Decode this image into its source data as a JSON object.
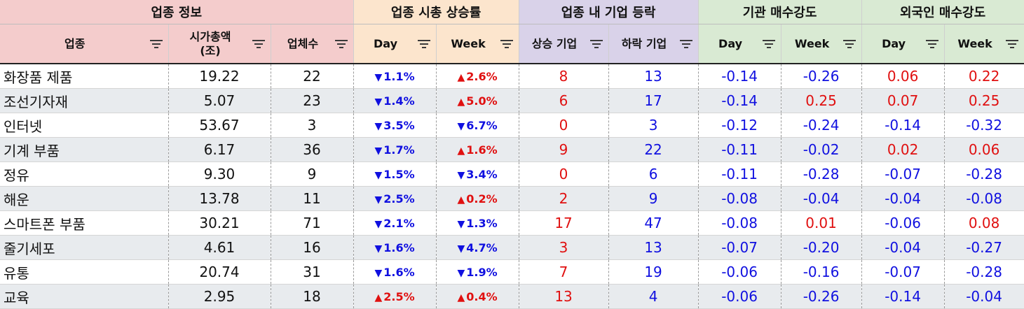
{
  "groups": [
    {
      "label": "업종 정보"
    },
    {
      "label": "업종 시총 상승률"
    },
    {
      "label": "업종 내 기업 등락"
    },
    {
      "label": "기관 매수강도"
    },
    {
      "label": "외국인 매수강도"
    }
  ],
  "columns": [
    {
      "label": "업종"
    },
    {
      "label": "시가총액\n(조)"
    },
    {
      "label": "업체수"
    },
    {
      "label": "Day"
    },
    {
      "label": "Week"
    },
    {
      "label": "상승 기업"
    },
    {
      "label": "하락 기업"
    },
    {
      "label": "Day"
    },
    {
      "label": "Week"
    },
    {
      "label": "Day"
    },
    {
      "label": "Week"
    }
  ],
  "icons": {
    "filter": "filter-icon",
    "up": "triangle-up-icon",
    "down": "triangle-down-icon"
  },
  "colors": {
    "up": "#e01010",
    "down": "#1010e0"
  },
  "rows": [
    {
      "name": "화장품 제품",
      "cap": "19.22",
      "count": "22",
      "day": {
        "dir": "down",
        "arrow": "▼",
        "val": "1.1%"
      },
      "week": {
        "dir": "up",
        "arrow": "▲",
        "val": "2.6%"
      },
      "rise": "8",
      "fall": "13",
      "inst_day": "-0.14",
      "inst_week": "-0.26",
      "for_day": "0.06",
      "for_week": "0.22"
    },
    {
      "name": "조선기자재",
      "cap": "5.07",
      "count": "23",
      "day": {
        "dir": "down",
        "arrow": "▼",
        "val": "1.4%"
      },
      "week": {
        "dir": "up",
        "arrow": "▲",
        "val": "5.0%"
      },
      "rise": "6",
      "fall": "17",
      "inst_day": "-0.14",
      "inst_week": "0.25",
      "for_day": "0.07",
      "for_week": "0.25"
    },
    {
      "name": "인터넷",
      "cap": "53.67",
      "count": "3",
      "day": {
        "dir": "down",
        "arrow": "▼",
        "val": "3.5%"
      },
      "week": {
        "dir": "down",
        "arrow": "▼",
        "val": "6.7%"
      },
      "rise": "0",
      "fall": "3",
      "inst_day": "-0.12",
      "inst_week": "-0.24",
      "for_day": "-0.14",
      "for_week": "-0.32"
    },
    {
      "name": "기계 부품",
      "cap": "6.17",
      "count": "36",
      "day": {
        "dir": "down",
        "arrow": "▼",
        "val": "1.7%"
      },
      "week": {
        "dir": "up",
        "arrow": "▲",
        "val": "1.6%"
      },
      "rise": "9",
      "fall": "22",
      "inst_day": "-0.11",
      "inst_week": "-0.02",
      "for_day": "0.02",
      "for_week": "0.06"
    },
    {
      "name": "정유",
      "cap": "9.30",
      "count": "9",
      "day": {
        "dir": "down",
        "arrow": "▼",
        "val": "1.5%"
      },
      "week": {
        "dir": "down",
        "arrow": "▼",
        "val": "3.4%"
      },
      "rise": "0",
      "fall": "6",
      "inst_day": "-0.11",
      "inst_week": "-0.28",
      "for_day": "-0.07",
      "for_week": "-0.28"
    },
    {
      "name": "해운",
      "cap": "13.78",
      "count": "11",
      "day": {
        "dir": "down",
        "arrow": "▼",
        "val": "2.5%"
      },
      "week": {
        "dir": "up",
        "arrow": "▲",
        "val": "0.2%"
      },
      "rise": "2",
      "fall": "9",
      "inst_day": "-0.08",
      "inst_week": "-0.04",
      "for_day": "-0.04",
      "for_week": "-0.08"
    },
    {
      "name": "스마트폰 부품",
      "cap": "30.21",
      "count": "71",
      "day": {
        "dir": "down",
        "arrow": "▼",
        "val": "2.1%"
      },
      "week": {
        "dir": "down",
        "arrow": "▼",
        "val": "1.3%"
      },
      "rise": "17",
      "fall": "47",
      "inst_day": "-0.08",
      "inst_week": "0.01",
      "for_day": "-0.06",
      "for_week": "0.08"
    },
    {
      "name": "줄기세포",
      "cap": "4.61",
      "count": "16",
      "day": {
        "dir": "down",
        "arrow": "▼",
        "val": "1.6%"
      },
      "week": {
        "dir": "down",
        "arrow": "▼",
        "val": "4.7%"
      },
      "rise": "3",
      "fall": "13",
      "inst_day": "-0.07",
      "inst_week": "-0.20",
      "for_day": "-0.04",
      "for_week": "-0.27"
    },
    {
      "name": "유통",
      "cap": "20.74",
      "count": "31",
      "day": {
        "dir": "down",
        "arrow": "▼",
        "val": "1.6%"
      },
      "week": {
        "dir": "down",
        "arrow": "▼",
        "val": "1.9%"
      },
      "rise": "7",
      "fall": "19",
      "inst_day": "-0.06",
      "inst_week": "-0.16",
      "for_day": "-0.07",
      "for_week": "-0.28"
    },
    {
      "name": "교육",
      "cap": "2.95",
      "count": "18",
      "day": {
        "dir": "up",
        "arrow": "▲",
        "val": "2.5%"
      },
      "week": {
        "dir": "up",
        "arrow": "▲",
        "val": "0.4%"
      },
      "rise": "13",
      "fall": "4",
      "inst_day": "-0.06",
      "inst_week": "-0.26",
      "for_day": "-0.14",
      "for_week": "-0.04"
    }
  ]
}
